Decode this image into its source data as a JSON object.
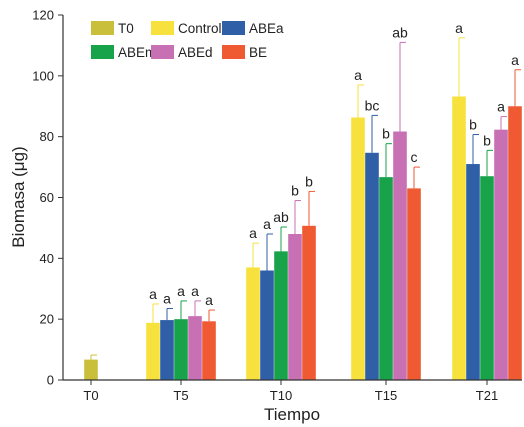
{
  "chart_data": {
    "type": "bar",
    "xlabel": "Tiempo",
    "ylabel": "Biomasa (μg)",
    "categories": [
      "T0",
      "T5",
      "T10",
      "T15",
      "T21"
    ],
    "ylim": [
      0,
      120
    ],
    "yticks": [
      0,
      20,
      40,
      60,
      80,
      100,
      120
    ],
    "grid": false,
    "legend_position": "top-left",
    "series": [
      {
        "name": "T0",
        "color": "#c9bf3b",
        "values": [
          6.7,
          null,
          null,
          null,
          null
        ],
        "errors": [
          1.5,
          null,
          null,
          null,
          null
        ],
        "labels": [
          "",
          "",
          "",
          "",
          ""
        ]
      },
      {
        "name": "Control",
        "color": "#f7e13c",
        "values": [
          null,
          18.8,
          37.0,
          86.3,
          93.2
        ],
        "errors": [
          null,
          6.2,
          8.0,
          10.7,
          19.3
        ],
        "labels": [
          "",
          "a",
          "a",
          "a",
          "a"
        ]
      },
      {
        "name": "ABEa",
        "color": "#2f5fa7",
        "values": [
          null,
          19.7,
          36.0,
          74.7,
          71.0
        ],
        "errors": [
          null,
          3.8,
          12.0,
          12.3,
          9.7
        ],
        "labels": [
          "",
          "a",
          "a",
          "bc",
          "b"
        ]
      },
      {
        "name": "ABEm",
        "color": "#18a34a",
        "values": [
          null,
          20.0,
          42.3,
          66.7,
          67.0
        ],
        "errors": [
          null,
          6.0,
          8.0,
          11.0,
          8.5
        ],
        "labels": [
          "",
          "a",
          "ab",
          "b",
          "b"
        ]
      },
      {
        "name": "ABEd",
        "color": "#c870b4",
        "values": [
          null,
          21.0,
          48.0,
          81.7,
          82.3
        ],
        "errors": [
          null,
          5.0,
          11.0,
          29.3,
          4.3
        ],
        "labels": [
          "",
          "a",
          "b",
          "ab",
          "a"
        ]
      },
      {
        "name": "BE",
        "color": "#ef5a33",
        "values": [
          null,
          19.3,
          50.7,
          63.0,
          90.0
        ],
        "errors": [
          null,
          3.7,
          11.3,
          7.0,
          12.0
        ],
        "labels": [
          "",
          "a",
          "b",
          "c",
          "a"
        ]
      }
    ]
  }
}
